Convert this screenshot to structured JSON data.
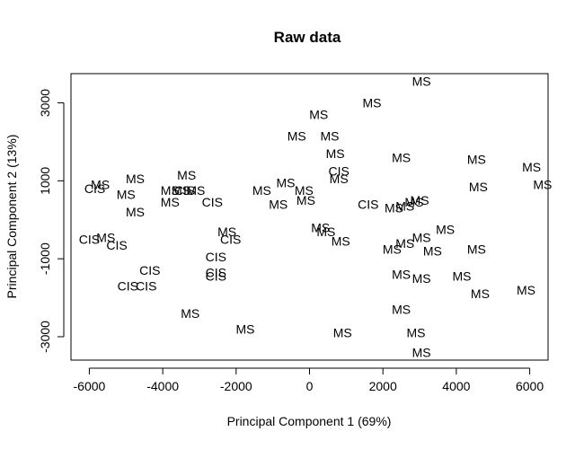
{
  "chart_data": {
    "type": "scatter",
    "title": "Raw data",
    "xlabel": "Principal Component 1 (69%)",
    "ylabel": "Principal Component 2 (13%)",
    "xlim": [
      -6500,
      6500
    ],
    "ylim": [
      -3600,
      3750
    ],
    "xticks": [
      -6000,
      -4000,
      -2000,
      0,
      2000,
      4000,
      6000
    ],
    "yticks": [
      -3000,
      -1000,
      1000,
      3000
    ],
    "grid": false,
    "points": [
      {
        "label": "MS",
        "x": 3050,
        "y": 3550
      },
      {
        "label": "MS",
        "x": 1700,
        "y": 3000
      },
      {
        "label": "MS",
        "x": 250,
        "y": 2700
      },
      {
        "label": "MS",
        "x": -350,
        "y": 2150
      },
      {
        "label": "MS",
        "x": 550,
        "y": 2150
      },
      {
        "label": "MS",
        "x": 700,
        "y": 1700
      },
      {
        "label": "CIS",
        "x": 800,
        "y": 1250
      },
      {
        "label": "MS",
        "x": 800,
        "y": 1050
      },
      {
        "label": "MS",
        "x": 2500,
        "y": 1600
      },
      {
        "label": "MS",
        "x": 4550,
        "y": 1550
      },
      {
        "label": "MS",
        "x": 6050,
        "y": 1350
      },
      {
        "label": "MS",
        "x": 6350,
        "y": 900
      },
      {
        "label": "MS",
        "x": 4600,
        "y": 850
      },
      {
        "label": "MS",
        "x": -5700,
        "y": 900
      },
      {
        "label": "CIS",
        "x": -5850,
        "y": 800
      },
      {
        "label": "MS",
        "x": -4750,
        "y": 1050
      },
      {
        "label": "MS",
        "x": -5000,
        "y": 650
      },
      {
        "label": "MS",
        "x": -4750,
        "y": 200
      },
      {
        "label": "MS",
        "x": -3350,
        "y": 1150
      },
      {
        "label": "MS",
        "x": -3800,
        "y": 750
      },
      {
        "label": "MS",
        "x": -3500,
        "y": 750
      },
      {
        "label": "CIS",
        "x": -3400,
        "y": 750
      },
      {
        "label": "MS",
        "x": -3100,
        "y": 750
      },
      {
        "label": "MS",
        "x": -3800,
        "y": 450
      },
      {
        "label": "CIS",
        "x": -2650,
        "y": 450
      },
      {
        "label": "MS",
        "x": -1300,
        "y": 750
      },
      {
        "label": "MS",
        "x": -650,
        "y": 950
      },
      {
        "label": "MS",
        "x": -150,
        "y": 750
      },
      {
        "label": "MS",
        "x": -850,
        "y": 400
      },
      {
        "label": "MS",
        "x": -100,
        "y": 500
      },
      {
        "label": "CIS",
        "x": 1600,
        "y": 400
      },
      {
        "label": "MS",
        "x": 2300,
        "y": 300
      },
      {
        "label": "MS",
        "x": 2600,
        "y": 350
      },
      {
        "label": "MS",
        "x": 2850,
        "y": 450
      },
      {
        "label": "MS",
        "x": 3000,
        "y": 500
      },
      {
        "label": "CIS",
        "x": -6000,
        "y": -500
      },
      {
        "label": "MS",
        "x": -5550,
        "y": -450
      },
      {
        "label": "CIS",
        "x": -5250,
        "y": -650
      },
      {
        "label": "MS",
        "x": -2250,
        "y": -300
      },
      {
        "label": "CIS",
        "x": -2150,
        "y": -500
      },
      {
        "label": "CIS",
        "x": -2550,
        "y": -950
      },
      {
        "label": "CIS",
        "x": -4350,
        "y": -1300
      },
      {
        "label": "CIS",
        "x": -2550,
        "y": -1350
      },
      {
        "label": "CIS",
        "x": -2550,
        "y": -1450
      },
      {
        "label": "CIS",
        "x": -4950,
        "y": -1700
      },
      {
        "label": "CIS",
        "x": -4450,
        "y": -1700
      },
      {
        "label": "MS",
        "x": -3250,
        "y": -2400
      },
      {
        "label": "MS",
        "x": -1750,
        "y": -2800
      },
      {
        "label": "MS",
        "x": 300,
        "y": -200
      },
      {
        "label": "MS",
        "x": 450,
        "y": -300
      },
      {
        "label": "MS",
        "x": 850,
        "y": -550
      },
      {
        "label": "MS",
        "x": 2250,
        "y": -750
      },
      {
        "label": "MS",
        "x": 2600,
        "y": -600
      },
      {
        "label": "MS",
        "x": 3050,
        "y": -450
      },
      {
        "label": "MS",
        "x": 3700,
        "y": -250
      },
      {
        "label": "MS",
        "x": 3350,
        "y": -800
      },
      {
        "label": "MS",
        "x": 4550,
        "y": -750
      },
      {
        "label": "MS",
        "x": 2500,
        "y": -1400
      },
      {
        "label": "MS",
        "x": 3050,
        "y": -1500
      },
      {
        "label": "MS",
        "x": 4150,
        "y": -1450
      },
      {
        "label": "MS",
        "x": 4650,
        "y": -1900
      },
      {
        "label": "MS",
        "x": 5900,
        "y": -1800
      },
      {
        "label": "MS",
        "x": 2500,
        "y": -2300
      },
      {
        "label": "MS",
        "x": 900,
        "y": -2900
      },
      {
        "label": "MS",
        "x": 2900,
        "y": -2900
      },
      {
        "label": "MS",
        "x": 3050,
        "y": -3400
      }
    ]
  }
}
